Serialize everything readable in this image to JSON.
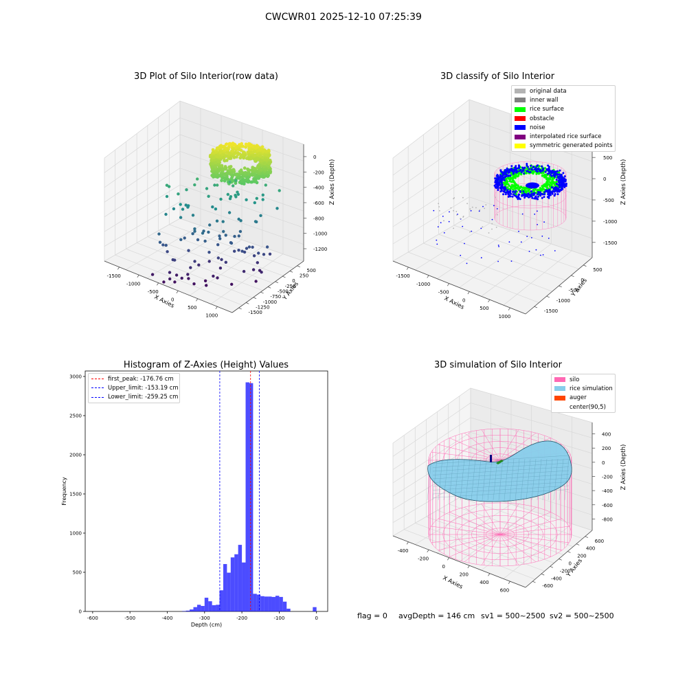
{
  "figure": {
    "suptitle": "CWCWR01 2025-12-10 07:25:39",
    "status": {
      "flag": "flag = 0",
      "avg_depth": "avgDepth = 146 cm",
      "sv1": "sv1 = 500~2500",
      "sv2": "sv2 = 500~2500"
    }
  },
  "chart_data": [
    {
      "type": "scatter",
      "title": "3D Plot of Silo Interior(row data)",
      "xlabel": "X Axies",
      "ylabel": "Y Axies",
      "zlabel": "Z Axies (Depth)",
      "x_ticks": [
        "-1500",
        "-1000",
        "-500",
        "0",
        "500",
        "1000"
      ],
      "y_ticks": [
        "500",
        "250",
        "0",
        "-250",
        "-500",
        "-750",
        "-1000",
        "-1250",
        "-1500"
      ],
      "z_ticks": [
        "0",
        "-200",
        "-400",
        "-600",
        "-800",
        "-1000",
        "-1200"
      ],
      "colormap": "viridis",
      "grid": true
    },
    {
      "type": "scatter",
      "title": "3D classify of Silo Interior",
      "xlabel": "X Axies",
      "ylabel": "Y Axies",
      "zlabel": "Z Axies (Depth)",
      "x_ticks": [
        "-1500",
        "-1000",
        "-500",
        "0",
        "500",
        "1000"
      ],
      "y_ticks": [
        "500",
        "0",
        "-500",
        "-1000",
        "-1500"
      ],
      "z_ticks": [
        "500",
        "0",
        "-500",
        "-1000",
        "-1500"
      ],
      "legend_position": "top-right",
      "legend": [
        {
          "label": "original data",
          "color": "#b3b3b3"
        },
        {
          "label": "inner wall",
          "color": "#808080"
        },
        {
          "label": "rice surface",
          "color": "#00ff00"
        },
        {
          "label": "obstacle",
          "color": "#ff0000"
        },
        {
          "label": "noise",
          "color": "#0000ff"
        },
        {
          "label": "interpolated rice surface",
          "color": "#800080"
        },
        {
          "label": "symmetric generated points",
          "color": "#ffff00"
        }
      ],
      "grid": true
    },
    {
      "type": "bar",
      "title": "Histogram of Z-Axies (Height) Values",
      "xlabel": "Depth (cm)",
      "ylabel": "Frequency",
      "xlim": [
        -620,
        30
      ],
      "ylim": [
        0,
        3070
      ],
      "x_ticks": [
        -600,
        -500,
        -400,
        -300,
        -200,
        -100,
        0
      ],
      "y_ticks": [
        0,
        500,
        1000,
        1500,
        2000,
        2500,
        3000
      ],
      "bin_width": 10,
      "bin_color": "#0000ff",
      "bins": [
        {
          "x": -360,
          "y": 5
        },
        {
          "x": -350,
          "y": 10
        },
        {
          "x": -340,
          "y": 25
        },
        {
          "x": -330,
          "y": 55
        },
        {
          "x": -320,
          "y": 85
        },
        {
          "x": -310,
          "y": 70
        },
        {
          "x": -300,
          "y": 175
        },
        {
          "x": -290,
          "y": 130
        },
        {
          "x": -280,
          "y": 80
        },
        {
          "x": -270,
          "y": 85
        },
        {
          "x": -260,
          "y": 270
        },
        {
          "x": -250,
          "y": 605
        },
        {
          "x": -240,
          "y": 495
        },
        {
          "x": -230,
          "y": 690
        },
        {
          "x": -220,
          "y": 730
        },
        {
          "x": -210,
          "y": 850
        },
        {
          "x": -200,
          "y": 625
        },
        {
          "x": -190,
          "y": 2925
        },
        {
          "x": -180,
          "y": 2915
        },
        {
          "x": -170,
          "y": 225
        },
        {
          "x": -160,
          "y": 215
        },
        {
          "x": -150,
          "y": 195
        },
        {
          "x": -140,
          "y": 190
        },
        {
          "x": -130,
          "y": 190
        },
        {
          "x": -120,
          "y": 185
        },
        {
          "x": -110,
          "y": 200
        },
        {
          "x": -100,
          "y": 185
        },
        {
          "x": -90,
          "y": 125
        },
        {
          "x": -80,
          "y": 35
        },
        {
          "x": -10,
          "y": 55
        }
      ],
      "vlines": [
        {
          "label": "first_peak: -176.76 cm",
          "x": -176.76,
          "color": "#ff0000"
        },
        {
          "label": "Upper_limit: -153.19 cm",
          "x": -153.19,
          "color": "#0000ff"
        },
        {
          "label": "Lower_limit: -259.25 cm",
          "x": -259.25,
          "color": "#0000ff"
        }
      ],
      "legend_position": "top-left",
      "grid": false
    },
    {
      "type": "surface",
      "title": "3D simulation of Silo Interior",
      "xlabel": "X Axies",
      "ylabel": "Y Axies",
      "zlabel": "Z Axies (Depth)",
      "x_ticks": [
        "-400",
        "-200",
        "0",
        "200",
        "400",
        "600"
      ],
      "y_ticks": [
        "600",
        "400",
        "200",
        "0",
        "-200",
        "-400",
        "-600"
      ],
      "z_ticks": [
        "400",
        "200",
        "0",
        "-200",
        "-400",
        "-600",
        "-800"
      ],
      "legend_position": "top-right",
      "legend": [
        {
          "label": "silo",
          "color": "#ff69b4"
        },
        {
          "label": "rice simulation",
          "color": "#87ceeb"
        },
        {
          "label": "auger",
          "color": "#ff4500"
        },
        {
          "label": "center(90,5)",
          "color": ""
        }
      ],
      "grid": true
    }
  ]
}
